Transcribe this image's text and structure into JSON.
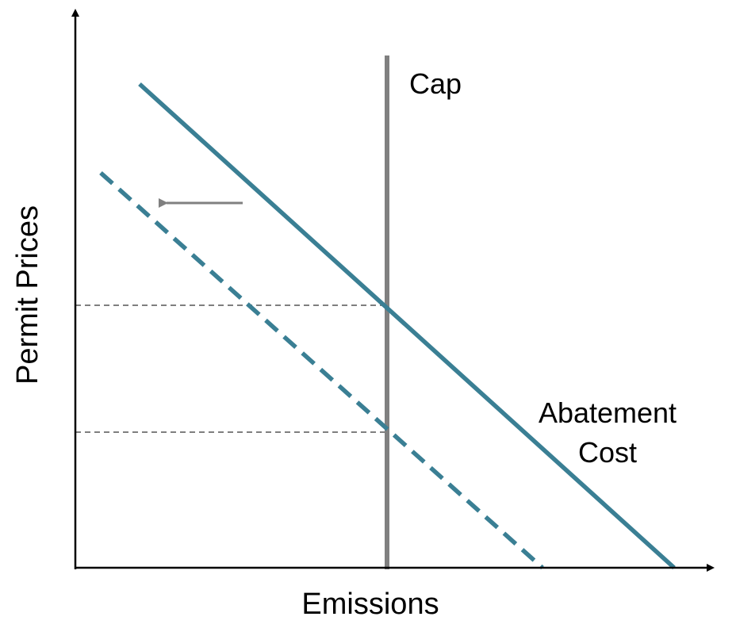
{
  "labels": {
    "y_axis": "Permit Prices",
    "x_axis": "Emissions",
    "cap": "Cap",
    "curve_line1": "Abatement",
    "curve_line2": "Cost"
  },
  "colors": {
    "curve": "#3a7f94",
    "cap_line": "#808080",
    "guide": "#7f7f7f",
    "arrow": "#808080",
    "axis": "#000000"
  },
  "diagram": {
    "curves": [
      "abatement-cost-original (solid)",
      "abatement-cost-shifted (dashed)"
    ],
    "shift_direction": "left",
    "price_levels": [
      "high",
      "low"
    ]
  }
}
